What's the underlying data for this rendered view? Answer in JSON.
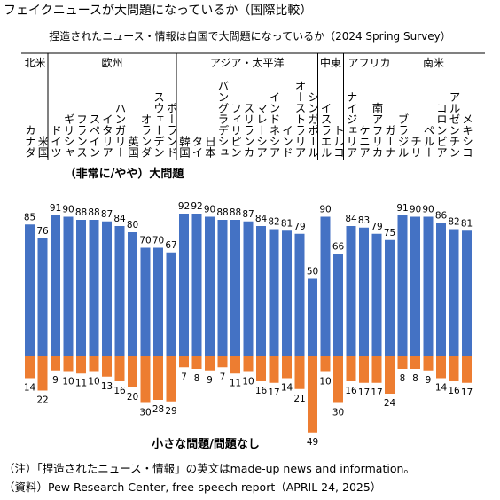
{
  "chart_data": {
    "type": "diverging-bar",
    "title": "フェイクニュースが大問題になっているか（国際比較）",
    "subtitle": "捏造されたニュース・情報は自国で大問題になっているか（2024 Spring Survey）",
    "groups": [
      {
        "name": "北米",
        "categories": [
          "カナダ",
          "米国"
        ]
      },
      {
        "name": "欧州",
        "categories": [
          "ドイツ",
          "ギリシャ",
          "フランス",
          "スペイン",
          "イタリア",
          "ハンガリー",
          "英国",
          "オランダ",
          "スウェーデン",
          "ポーランド"
        ]
      },
      {
        "name": "アジア・太平洋",
        "categories": [
          "韓国",
          "タイ",
          "日本",
          "バングラデシュ",
          "フィリピン",
          "スリランカ",
          "マレーシア",
          "インドネシア",
          "インド",
          "オーストラリア",
          "シンガポール"
        ]
      },
      {
        "name": "中東",
        "categories": [
          "イスラエル",
          "トルコ"
        ]
      },
      {
        "name": "アフリカ",
        "categories": [
          "ナイジェリア",
          "ケニア",
          "南アフリカ",
          "ガーナ"
        ]
      },
      {
        "name": "南米",
        "categories": [
          "ブラジル",
          "チリ",
          "ペルー",
          "コロンビア",
          "アルゼンチン",
          "メキシコ"
        ]
      }
    ],
    "series": [
      {
        "name": "（非常に/やや）大問題",
        "color": "#4472c4",
        "direction": "up",
        "values": [
          85,
          76,
          91,
          90,
          88,
          88,
          87,
          84,
          80,
          70,
          70,
          67,
          92,
          92,
          90,
          88,
          88,
          87,
          84,
          82,
          81,
          79,
          50,
          90,
          66,
          84,
          83,
          79,
          75,
          91,
          90,
          90,
          86,
          82,
          81
        ]
      },
      {
        "name": "小さな問題/問題なし",
        "color": "#ed7d31",
        "direction": "down",
        "values": [
          14,
          22,
          9,
          10,
          11,
          10,
          13,
          16,
          20,
          30,
          28,
          29,
          7,
          8,
          9,
          7,
          11,
          10,
          16,
          17,
          14,
          21,
          49,
          10,
          30,
          16,
          17,
          17,
          24,
          8,
          8,
          9,
          14,
          16,
          17
        ]
      }
    ],
    "notes": [
      "（注）「捏造されたニュース・情報」の英文はmade-up news and information。",
      "（資料）Pew Research Center, free-speech report（APRIL 24, 2025）"
    ]
  }
}
